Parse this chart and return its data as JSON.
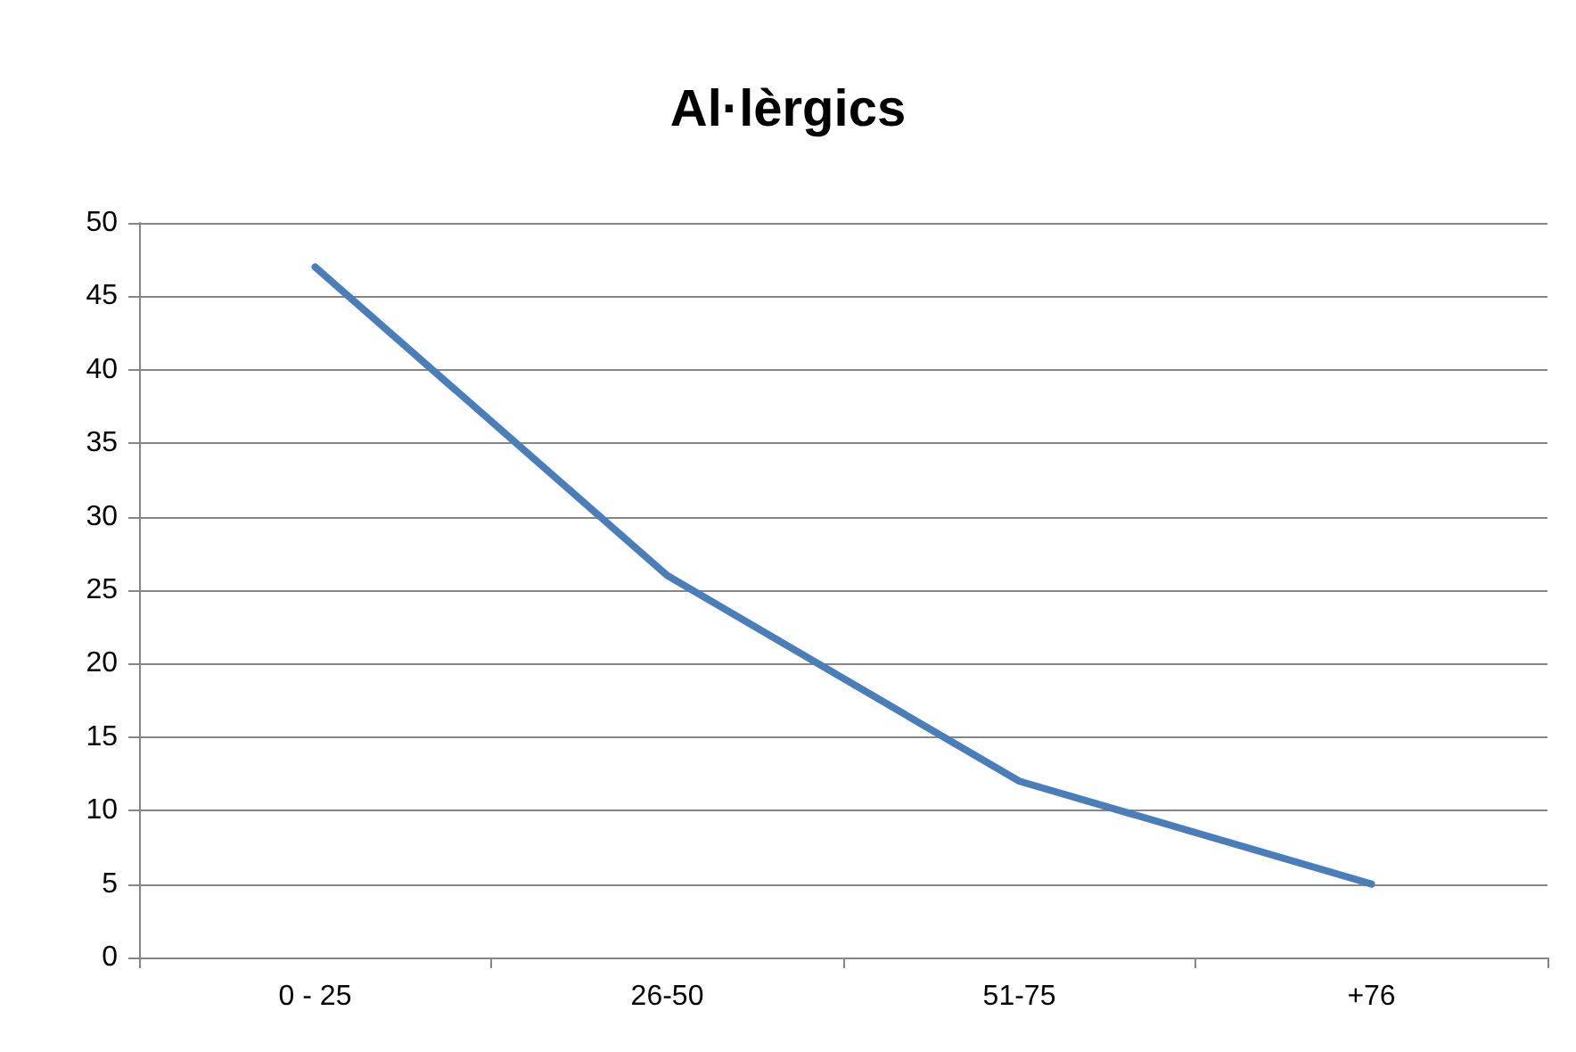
{
  "chart_data": {
    "type": "line",
    "title": "Al·lèrgics",
    "categories": [
      "0 - 25",
      "26-50",
      "51-75",
      "+76"
    ],
    "series": [
      {
        "color": "#4a7ebb",
        "values": [
          47,
          26,
          12,
          5
        ]
      }
    ],
    "ylim": [
      0,
      50
    ],
    "yticks": [
      0,
      5,
      10,
      15,
      20,
      25,
      30,
      35,
      40,
      45,
      50
    ],
    "grid": "y",
    "marker": "none",
    "line_style": "solid"
  }
}
